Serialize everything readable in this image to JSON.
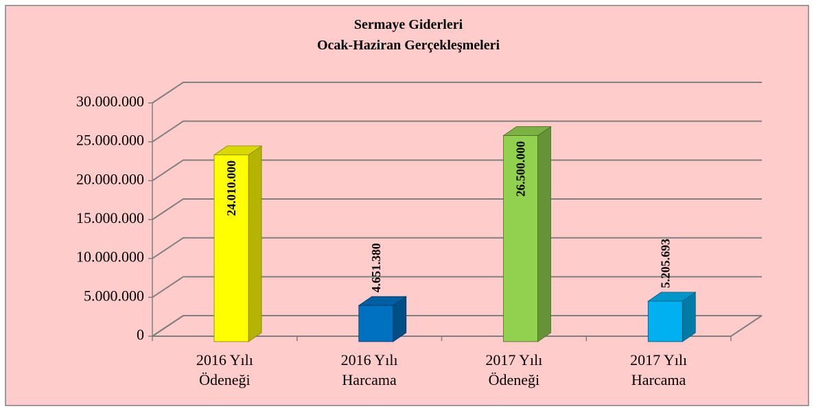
{
  "chart_data": {
    "type": "bar3d",
    "title": "Sermaye Giderleri",
    "subtitle": "Ocak-Haziran Gerçekleşmeleri",
    "categories": [
      [
        "2016 Yılı",
        "Ödeneği"
      ],
      [
        "2016 Yılı",
        "Harcama"
      ],
      [
        "2017 Yılı",
        "Ödeneği"
      ],
      [
        "2017 Yılı",
        "Harcama"
      ]
    ],
    "values": [
      24010000,
      4651380,
      26500000,
      5205693
    ],
    "value_labels": [
      "24.010.000",
      "4.651.380",
      "26.500.000",
      "5.205.693"
    ],
    "colors": [
      "#ffff00",
      "#0070c0",
      "#92d050",
      "#00b0f0"
    ],
    "ylim": [
      0,
      30000000
    ],
    "yticks": [
      {
        "value": 0,
        "label": "0"
      },
      {
        "value": 5000000,
        "label": "5.000.000"
      },
      {
        "value": 10000000,
        "label": "10.000.000"
      },
      {
        "value": 15000000,
        "label": "15.000.000"
      },
      {
        "value": 20000000,
        "label": "20.000.000"
      },
      {
        "value": 25000000,
        "label": "25.000.000"
      },
      {
        "value": 30000000,
        "label": "30.000.000"
      }
    ],
    "grid": true
  }
}
